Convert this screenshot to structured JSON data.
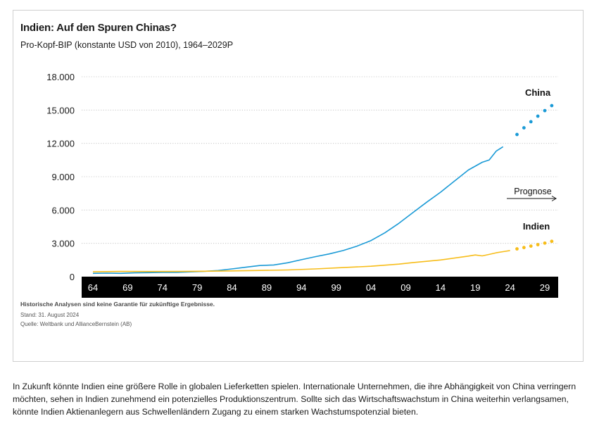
{
  "chart_data": {
    "type": "line",
    "title": "Indien: Auf den Spuren Chinas?",
    "subtitle": "Pro-Kopf-BIP (konstante USD von 2010), 1964–2029P",
    "xlabel": "",
    "ylabel": "",
    "xlim": [
      1963,
      2031
    ],
    "ylim": [
      0,
      18000
    ],
    "y_ticks": [
      0,
      3000,
      6000,
      9000,
      12000,
      15000,
      18000
    ],
    "y_tick_labels": [
      "0",
      "3.000",
      "6.000",
      "9.000",
      "12.000",
      "15.000",
      "18.000"
    ],
    "x_ticks": [
      1964,
      1969,
      1974,
      1979,
      1984,
      1989,
      1994,
      1999,
      2004,
      2009,
      2014,
      2019,
      2024,
      2029
    ],
    "x_tick_labels": [
      "64",
      "69",
      "74",
      "79",
      "84",
      "89",
      "94",
      "99",
      "04",
      "09",
      "14",
      "19",
      "24",
      "29"
    ],
    "annotation_forecast": "Prognose",
    "series": [
      {
        "name": "China",
        "color": "#1a9ad6",
        "x": [
          1964,
          1966,
          1968,
          1970,
          1972,
          1974,
          1976,
          1978,
          1980,
          1982,
          1984,
          1986,
          1988,
          1990,
          1992,
          1994,
          1996,
          1998,
          2000,
          2002,
          2004,
          2006,
          2008,
          2010,
          2012,
          2014,
          2016,
          2018,
          2020,
          2021,
          2022,
          2023
        ],
        "values": [
          300,
          320,
          300,
          340,
          360,
          380,
          380,
          430,
          480,
          550,
          700,
          850,
          1000,
          1050,
          1250,
          1530,
          1800,
          2050,
          2350,
          2750,
          3250,
          3950,
          4800,
          5750,
          6700,
          7600,
          8600,
          9600,
          10300,
          10500,
          11300,
          11700
        ]
      },
      {
        "name": "Indien",
        "color": "#f7bd1a",
        "x": [
          1964,
          1968,
          1972,
          1976,
          1980,
          1984,
          1988,
          1992,
          1996,
          2000,
          2004,
          2008,
          2010,
          2014,
          2018,
          2019,
          2020,
          2021,
          2022,
          2023,
          2024
        ],
        "values": [
          440,
          470,
          460,
          470,
          490,
          520,
          560,
          600,
          700,
          820,
          940,
          1130,
          1260,
          1500,
          1850,
          1950,
          1870,
          2000,
          2150,
          2250,
          2350
        ]
      }
    ],
    "forecast": [
      {
        "name": "China Prognose",
        "color": "#1a9ad6",
        "x": [
          2025,
          2026,
          2027,
          2028,
          2029,
          2030
        ],
        "values": [
          12800,
          13400,
          13950,
          14450,
          14950,
          15400
        ]
      },
      {
        "name": "Indien Prognose",
        "color": "#f7bd1a",
        "x": [
          2025,
          2026,
          2027,
          2028,
          2029,
          2030
        ],
        "values": [
          2500,
          2620,
          2750,
          2880,
          3020,
          3180
        ]
      }
    ]
  },
  "notes": {
    "disclaimer": "Historische Analysen sind keine Garantie für zukünftige Ergebnisse.",
    "date": "Stand: 31. August 2024",
    "source": "Quelle: Weltbank und AllianceBernstein (AB)"
  },
  "caption": "In Zukunft könnte Indien eine größere Rolle in globalen Lieferketten spielen. Internationale Unternehmen, die ihre Abhängigkeit von China verringern möchten, sehen in Indien zunehmend ein potenzielles Produktionszentrum. Sollte sich das Wirtschaftswachstum in China weiterhin verlangsamen, könnte Indien Aktienanlegern aus Schwellenländern Zugang zu einem starken Wachstumspotenzial bieten."
}
